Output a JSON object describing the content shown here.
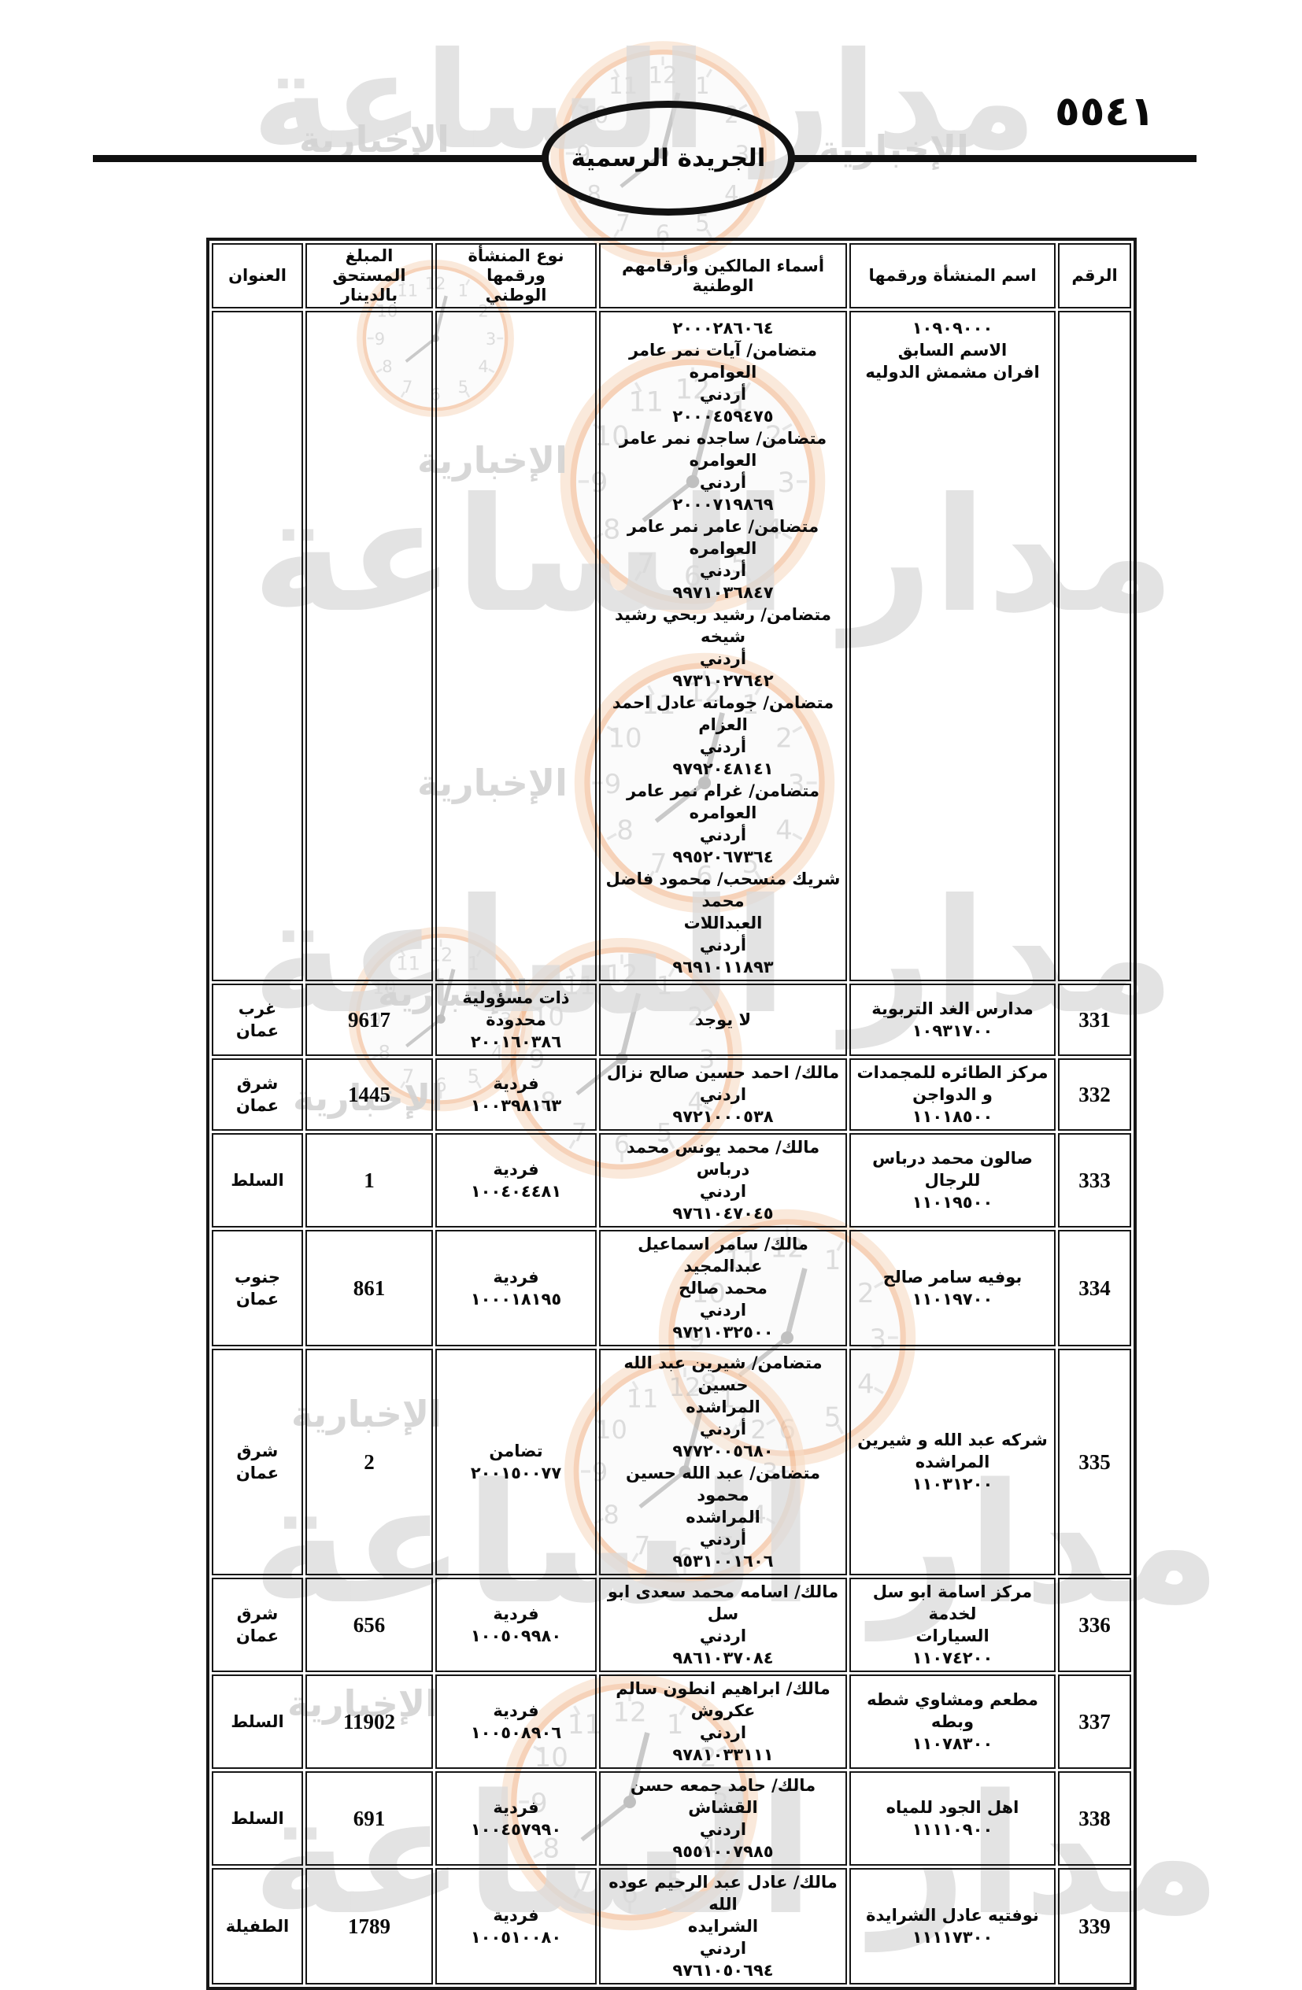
{
  "page": {
    "number": "٥٥٤١"
  },
  "logo": {
    "label": "الجريدة الرسمية"
  },
  "watermark": {
    "brand": "مدار الساعة",
    "suffix": "الإخبارية"
  },
  "table": {
    "headers": [
      "الرقم",
      "اسم المنشأة ورقمها",
      "أسماء المالكين وأرقامهم الوطنية",
      "نوع المنشأة ورقمها\nالوطني",
      "المبلغ المستحق\nبالدينار",
      "العنوان"
    ],
    "rows": [
      {
        "num": "",
        "name": "١٠٩٠٩٠٠٠\nالاسم السابق\nافران مشمش الدوليه",
        "owners": "٢٠٠٠٢٨٦٠٦٤\nمتضامن/ آيات نمر عامر العوامره\nأردني\n٢٠٠٠٤٥٩٤٧٥\nمتضامن/ ساجده نمر عامر\nالعوامره\nأردني\n٢٠٠٠٧١٩٨٦٩\nمتضامن/ عامر نمر عامر\nالعوامره\nأردني\n٩٩٧١٠٣٦٨٤٧\nمتضامن/ رشيد ربحي رشيد شيخه\nأردني\n٩٧٣١٠٢٧٦٤٢\nمتضامن/ جومانه عادل احمد\nالعزام\nأردني\n٩٧٩٢٠٤٨١٤١\nمتضامن/ غرام نمر عامر العوامره\nأردني\n٩٩٥٢٠٦٧٣٦٤\nشريك منسحب/ محمود فاضل محمد\nالعبداللات\nأردني\n٩٦٩١٠١١٨٩٣",
        "type": "",
        "amount": "",
        "address": ""
      },
      {
        "num": "331",
        "name": "مدارس الغد التربوية\n١٠٩٣١٧٠٠",
        "owners": "لا يوجد",
        "type": "ذات مسؤولية\nمحدودة\n٢٠٠١٦٠٣٨٦",
        "amount": "9617",
        "address": "غرب\nعمان"
      },
      {
        "num": "332",
        "name": "مركز الطائره للمجمدات\nو الدواجن\n١١٠١٨٥٠٠",
        "owners": "مالك/ احمد حسين صالح نزال\nاردني\n٩٧٢١٠٠٠٥٣٨",
        "type": "فردية\n١٠٠٣٩٨١٦٣",
        "amount": "1445",
        "address": "شرق\nعمان"
      },
      {
        "num": "333",
        "name": "صالون محمد درباس للرجال\n١١٠١٩٥٠٠",
        "owners": "مالك/ محمد يونس محمد درباس\nاردني\n٩٧٦١٠٤٧٠٤٥",
        "type": "فردية\n١٠٠٤٠٤٤٨١",
        "amount": "1",
        "address": "السلط"
      },
      {
        "num": "334",
        "name": "بوفيه سامر صالح\n١١٠١٩٧٠٠",
        "owners": "مالك/ سامر اسماعيل عبدالمجيد\nمحمد صالح\nاردني\n٩٧٢١٠٣٢٥٠٠",
        "type": "فردية\n١٠٠٠١٨١٩٥",
        "amount": "861",
        "address": "جنوب\nعمان"
      },
      {
        "num": "335",
        "name": "شركه عبد الله و شيرين\nالمراشده\n١١٠٣١٢٠٠",
        "owners": "متضامن/ شيرين عبد الله حسين\nالمراشده\nأردني\n٩٧٧٢٠٠٥٦٨٠\nمتضامن/ عبد الله حسين محمود\nالمراشده\nأردني\n٩٥٣١٠٠١٦٠٦",
        "type": "تضامن\n٢٠٠١٥٠٠٧٧",
        "amount": "2",
        "address": "شرق\nعمان"
      },
      {
        "num": "336",
        "name": "مركز اسامة ابو سل لخدمة\nالسيارات\n١١٠٧٤٢٠٠",
        "owners": "مالك/ اسامه محمد سعدى ابو سل\nاردني\n٩٨٦١٠٣٧٠٨٤",
        "type": "فردية\n١٠٠٥٠٩٩٨٠",
        "amount": "656",
        "address": "شرق\nعمان"
      },
      {
        "num": "337",
        "name": "مطعم ومشاوي شطه وبطه\n١١٠٧٨٣٠٠",
        "owners": "مالك/ ابراهيم انطون سالم\nعكروش\nاردني\n٩٧٨١٠٣٣١١١",
        "type": "فردية\n١٠٠٥٠٨٩٠٦",
        "amount": "11902",
        "address": "السلط"
      },
      {
        "num": "338",
        "name": "اهل الجود للمياه\n١١١١٠٩٠٠",
        "owners": "مالك/ حامد جمعه حسن القشاش\nاردني\n٩٥٥١٠٠٧٩٨٥",
        "type": "فردية\n١٠٠٤٥٧٩٩٠",
        "amount": "691",
        "address": "السلط"
      },
      {
        "num": "339",
        "name": "نوفتيه عادل الشرايدة\n١١١١٧٣٠٠",
        "owners": "مالك/ عادل عبد الرحيم عوده الله\nالشرايده\nاردني\n٩٧٦١٠٥٠٦٩٤",
        "type": "فردية\n١٠٠٥١٠٠٨٠",
        "amount": "1789",
        "address": "الطفيلة"
      }
    ]
  }
}
